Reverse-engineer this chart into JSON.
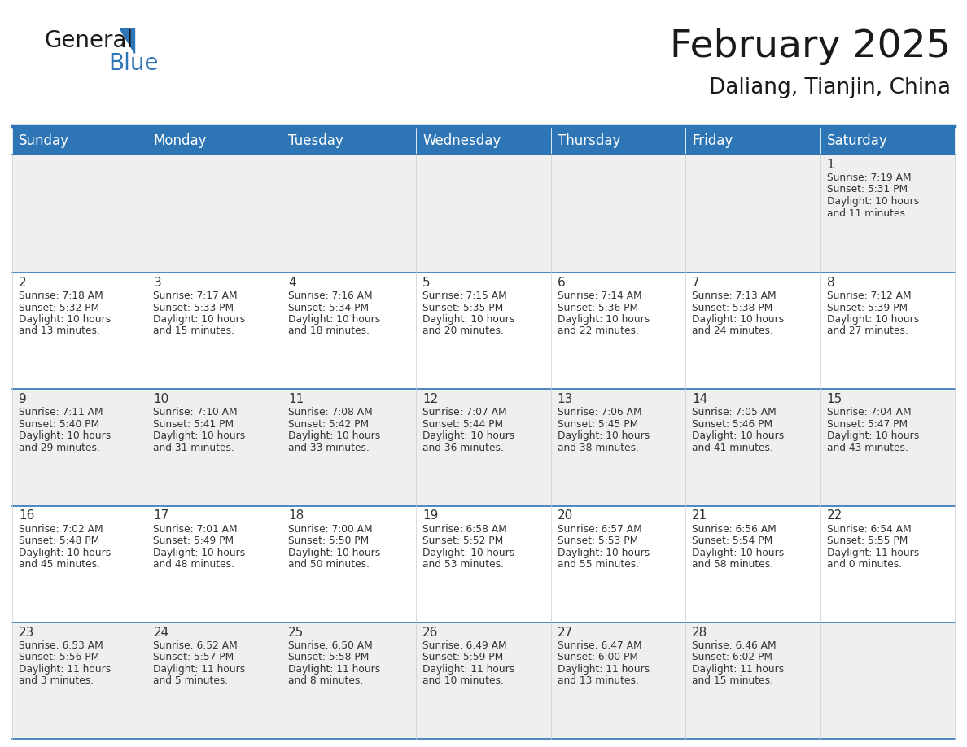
{
  "title": "February 2025",
  "subtitle": "Daliang, Tianjin, China",
  "header_bg": "#2E75B6",
  "header_text_color": "#FFFFFF",
  "cell_bg_odd": "#EFEFEF",
  "cell_bg_even": "#FFFFFF",
  "border_color": "#2E75B6",
  "text_color": "#333333",
  "day_headers": [
    "Sunday",
    "Monday",
    "Tuesday",
    "Wednesday",
    "Thursday",
    "Friday",
    "Saturday"
  ],
  "days": [
    {
      "day": 1,
      "col": 6,
      "row": 0,
      "sunrise": "7:19 AM",
      "sunset": "5:31 PM",
      "daylight": "10 hours",
      "daylight2": "and 11 minutes."
    },
    {
      "day": 2,
      "col": 0,
      "row": 1,
      "sunrise": "7:18 AM",
      "sunset": "5:32 PM",
      "daylight": "10 hours",
      "daylight2": "and 13 minutes."
    },
    {
      "day": 3,
      "col": 1,
      "row": 1,
      "sunrise": "7:17 AM",
      "sunset": "5:33 PM",
      "daylight": "10 hours",
      "daylight2": "and 15 minutes."
    },
    {
      "day": 4,
      "col": 2,
      "row": 1,
      "sunrise": "7:16 AM",
      "sunset": "5:34 PM",
      "daylight": "10 hours",
      "daylight2": "and 18 minutes."
    },
    {
      "day": 5,
      "col": 3,
      "row": 1,
      "sunrise": "7:15 AM",
      "sunset": "5:35 PM",
      "daylight": "10 hours",
      "daylight2": "and 20 minutes."
    },
    {
      "day": 6,
      "col": 4,
      "row": 1,
      "sunrise": "7:14 AM",
      "sunset": "5:36 PM",
      "daylight": "10 hours",
      "daylight2": "and 22 minutes."
    },
    {
      "day": 7,
      "col": 5,
      "row": 1,
      "sunrise": "7:13 AM",
      "sunset": "5:38 PM",
      "daylight": "10 hours",
      "daylight2": "and 24 minutes."
    },
    {
      "day": 8,
      "col": 6,
      "row": 1,
      "sunrise": "7:12 AM",
      "sunset": "5:39 PM",
      "daylight": "10 hours",
      "daylight2": "and 27 minutes."
    },
    {
      "day": 9,
      "col": 0,
      "row": 2,
      "sunrise": "7:11 AM",
      "sunset": "5:40 PM",
      "daylight": "10 hours",
      "daylight2": "and 29 minutes."
    },
    {
      "day": 10,
      "col": 1,
      "row": 2,
      "sunrise": "7:10 AM",
      "sunset": "5:41 PM",
      "daylight": "10 hours",
      "daylight2": "and 31 minutes."
    },
    {
      "day": 11,
      "col": 2,
      "row": 2,
      "sunrise": "7:08 AM",
      "sunset": "5:42 PM",
      "daylight": "10 hours",
      "daylight2": "and 33 minutes."
    },
    {
      "day": 12,
      "col": 3,
      "row": 2,
      "sunrise": "7:07 AM",
      "sunset": "5:44 PM",
      "daylight": "10 hours",
      "daylight2": "and 36 minutes."
    },
    {
      "day": 13,
      "col": 4,
      "row": 2,
      "sunrise": "7:06 AM",
      "sunset": "5:45 PM",
      "daylight": "10 hours",
      "daylight2": "and 38 minutes."
    },
    {
      "day": 14,
      "col": 5,
      "row": 2,
      "sunrise": "7:05 AM",
      "sunset": "5:46 PM",
      "daylight": "10 hours",
      "daylight2": "and 41 minutes."
    },
    {
      "day": 15,
      "col": 6,
      "row": 2,
      "sunrise": "7:04 AM",
      "sunset": "5:47 PM",
      "daylight": "10 hours",
      "daylight2": "and 43 minutes."
    },
    {
      "day": 16,
      "col": 0,
      "row": 3,
      "sunrise": "7:02 AM",
      "sunset": "5:48 PM",
      "daylight": "10 hours",
      "daylight2": "and 45 minutes."
    },
    {
      "day": 17,
      "col": 1,
      "row": 3,
      "sunrise": "7:01 AM",
      "sunset": "5:49 PM",
      "daylight": "10 hours",
      "daylight2": "and 48 minutes."
    },
    {
      "day": 18,
      "col": 2,
      "row": 3,
      "sunrise": "7:00 AM",
      "sunset": "5:50 PM",
      "daylight": "10 hours",
      "daylight2": "and 50 minutes."
    },
    {
      "day": 19,
      "col": 3,
      "row": 3,
      "sunrise": "6:58 AM",
      "sunset": "5:52 PM",
      "daylight": "10 hours",
      "daylight2": "and 53 minutes."
    },
    {
      "day": 20,
      "col": 4,
      "row": 3,
      "sunrise": "6:57 AM",
      "sunset": "5:53 PM",
      "daylight": "10 hours",
      "daylight2": "and 55 minutes."
    },
    {
      "day": 21,
      "col": 5,
      "row": 3,
      "sunrise": "6:56 AM",
      "sunset": "5:54 PM",
      "daylight": "10 hours",
      "daylight2": "and 58 minutes."
    },
    {
      "day": 22,
      "col": 6,
      "row": 3,
      "sunrise": "6:54 AM",
      "sunset": "5:55 PM",
      "daylight": "11 hours",
      "daylight2": "and 0 minutes."
    },
    {
      "day": 23,
      "col": 0,
      "row": 4,
      "sunrise": "6:53 AM",
      "sunset": "5:56 PM",
      "daylight": "11 hours",
      "daylight2": "and 3 minutes."
    },
    {
      "day": 24,
      "col": 1,
      "row": 4,
      "sunrise": "6:52 AM",
      "sunset": "5:57 PM",
      "daylight": "11 hours",
      "daylight2": "and 5 minutes."
    },
    {
      "day": 25,
      "col": 2,
      "row": 4,
      "sunrise": "6:50 AM",
      "sunset": "5:58 PM",
      "daylight": "11 hours",
      "daylight2": "and 8 minutes."
    },
    {
      "day": 26,
      "col": 3,
      "row": 4,
      "sunrise": "6:49 AM",
      "sunset": "5:59 PM",
      "daylight": "11 hours",
      "daylight2": "and 10 minutes."
    },
    {
      "day": 27,
      "col": 4,
      "row": 4,
      "sunrise": "6:47 AM",
      "sunset": "6:00 PM",
      "daylight": "11 hours",
      "daylight2": "and 13 minutes."
    },
    {
      "day": 28,
      "col": 5,
      "row": 4,
      "sunrise": "6:46 AM",
      "sunset": "6:02 PM",
      "daylight": "11 hours",
      "daylight2": "and 15 minutes."
    }
  ],
  "num_rows": 5,
  "num_cols": 7,
  "title_fontsize": 34,
  "subtitle_fontsize": 19,
  "header_fontsize": 12,
  "day_num_fontsize": 11,
  "cell_text_fontsize": 8.8,
  "logo_fontsize_general": 20,
  "logo_fontsize_blue": 20
}
